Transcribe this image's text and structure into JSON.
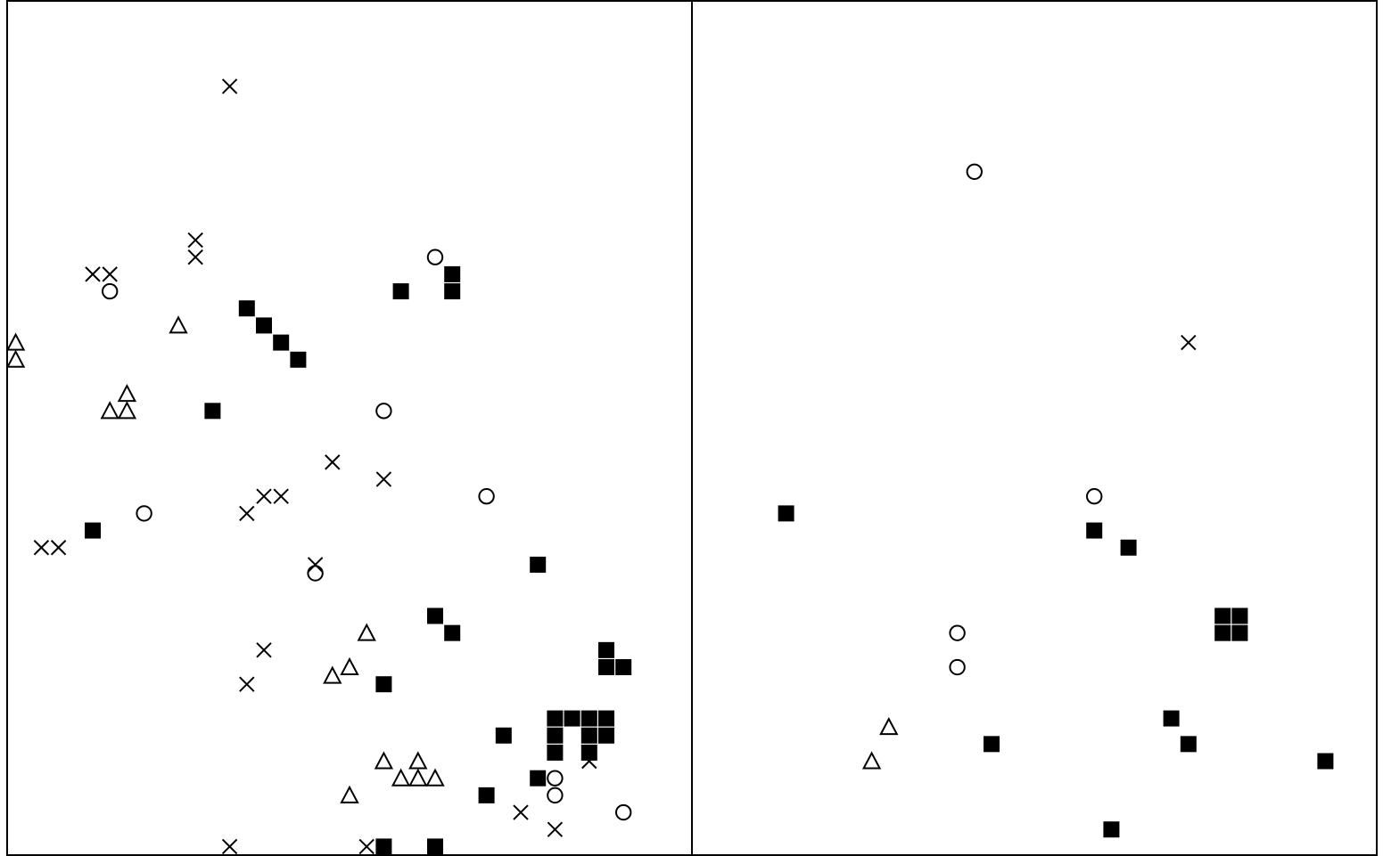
{
  "chart_data": [
    {
      "type": "scatter",
      "panel": "left",
      "title": "",
      "xlabel": "",
      "ylabel": "",
      "xlim": [
        0,
        40
      ],
      "ylim": [
        0,
        50
      ],
      "axes_visible": false,
      "grid": false,
      "legend": "none",
      "series": [
        {
          "marker": "x",
          "points": [
            [
              13,
              45
            ],
            [
              11,
              36
            ],
            [
              11,
              35
            ],
            [
              5,
              34
            ],
            [
              6,
              34
            ],
            [
              19,
              23
            ],
            [
              22,
              22
            ],
            [
              15,
              21
            ],
            [
              16,
              21
            ],
            [
              14,
              20
            ],
            [
              2,
              18
            ],
            [
              3,
              18
            ],
            [
              18,
              17
            ],
            [
              15,
              12
            ],
            [
              14,
              10
            ],
            [
              34,
              5.5
            ],
            [
              30,
              2.5
            ],
            [
              32,
              1.5
            ],
            [
              13,
              0.5
            ],
            [
              21,
              0.5
            ]
          ]
        },
        {
          "marker": "circle",
          "points": [
            [
              25,
              35
            ],
            [
              6,
              33
            ],
            [
              22,
              26
            ],
            [
              28,
              21
            ],
            [
              8,
              20
            ],
            [
              18,
              16.5
            ],
            [
              32,
              4.5
            ],
            [
              32,
              3.5
            ],
            [
              36,
              2.5
            ]
          ]
        },
        {
          "marker": "triangle",
          "points": [
            [
              10,
              31
            ],
            [
              0.5,
              30
            ],
            [
              0.5,
              29
            ],
            [
              7,
              27
            ],
            [
              6,
              26
            ],
            [
              7,
              26
            ],
            [
              21,
              13
            ],
            [
              20,
              11
            ],
            [
              19,
              10.5
            ],
            [
              22,
              5.5
            ],
            [
              24,
              5.5
            ],
            [
              23,
              4.5
            ],
            [
              24,
              4.5
            ],
            [
              25,
              4.5
            ],
            [
              20,
              3.5
            ]
          ]
        },
        {
          "marker": "square",
          "points": [
            [
              26,
              34
            ],
            [
              23,
              33
            ],
            [
              26,
              33
            ],
            [
              14,
              32
            ],
            [
              15,
              31
            ],
            [
              16,
              30
            ],
            [
              17,
              29
            ],
            [
              12,
              26
            ],
            [
              5,
              19
            ],
            [
              31,
              17
            ],
            [
              25,
              14
            ],
            [
              26,
              13
            ],
            [
              35,
              12
            ],
            [
              35,
              11
            ],
            [
              36,
              11
            ],
            [
              22,
              10
            ],
            [
              32,
              8
            ],
            [
              33,
              8
            ],
            [
              34,
              8
            ],
            [
              35,
              8
            ],
            [
              29,
              7
            ],
            [
              32,
              7
            ],
            [
              34,
              7
            ],
            [
              35,
              7
            ],
            [
              32,
              6
            ],
            [
              34,
              6
            ],
            [
              31,
              4.5
            ],
            [
              28,
              3.5
            ],
            [
              22,
              0.5
            ],
            [
              25,
              0.5
            ]
          ]
        }
      ]
    },
    {
      "type": "scatter",
      "panel": "right",
      "title": "",
      "xlabel": "",
      "ylabel": "",
      "xlim": [
        0,
        40
      ],
      "ylim": [
        0,
        50
      ],
      "axes_visible": false,
      "grid": false,
      "legend": "none",
      "series": [
        {
          "marker": "x",
          "points": [
            [
              29,
              30
            ]
          ]
        },
        {
          "marker": "circle",
          "points": [
            [
              16.5,
              40
            ],
            [
              23.5,
              21
            ],
            [
              15.5,
              13
            ],
            [
              15.5,
              11
            ]
          ]
        },
        {
          "marker": "triangle",
          "points": [
            [
              11.5,
              7.5
            ],
            [
              10.5,
              5.5
            ]
          ]
        },
        {
          "marker": "square",
          "points": [
            [
              5.5,
              20
            ],
            [
              23.5,
              19
            ],
            [
              25.5,
              18
            ],
            [
              31,
              14
            ],
            [
              32,
              14
            ],
            [
              31,
              13
            ],
            [
              32,
              13
            ],
            [
              28,
              8
            ],
            [
              17.5,
              6.5
            ],
            [
              29,
              6.5
            ],
            [
              37,
              5.5
            ],
            [
              24.5,
              1.5
            ]
          ]
        }
      ]
    }
  ]
}
